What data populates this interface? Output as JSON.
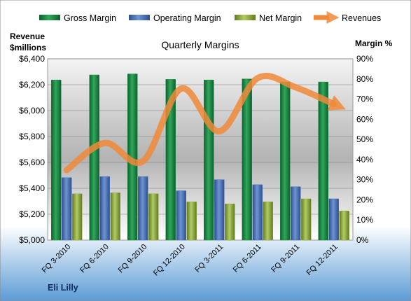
{
  "chart_data": {
    "type": "bar",
    "title": "Quarterly Margins",
    "company": "Eli Lilly",
    "left_axis": {
      "label_line1": "Revenue",
      "label_line2": "$millions",
      "min": 5000,
      "max": 6400,
      "step": 200,
      "ticks": [
        "$5,000",
        "$5,200",
        "$5,400",
        "$5,600",
        "$5,800",
        "$6,000",
        "$6,200",
        "$6,400"
      ]
    },
    "right_axis": {
      "label": "Margin %",
      "min": 0,
      "max": 90,
      "step": 10,
      "ticks": [
        "0%",
        "10%",
        "20%",
        "30%",
        "40%",
        "50%",
        "60%",
        "70%",
        "80%",
        "90%"
      ]
    },
    "categories": [
      "FQ 3-2010",
      "FQ 6-2010",
      "FQ 9-2010",
      "FQ 12-2010",
      "FQ 3-2011",
      "FQ 6-2011",
      "FQ 9-2011",
      "FQ 12-2011"
    ],
    "series": [
      {
        "name": "Gross Margin",
        "axis": "right",
        "kind": "bar",
        "color": "#1e8a47",
        "values": [
          79.5,
          82,
          82.5,
          79.8,
          79.5,
          80,
          78.5,
          78.5
        ]
      },
      {
        "name": "Operating Margin",
        "axis": "right",
        "kind": "bar",
        "color": "#4a70b5",
        "values": [
          31,
          31.5,
          31.5,
          24.5,
          30,
          27.5,
          26.5,
          20.5
        ]
      },
      {
        "name": "Net Margin",
        "axis": "right",
        "kind": "bar",
        "color": "#8faa3c",
        "values": [
          23,
          23.5,
          23,
          19,
          18,
          19,
          20.5,
          14.5
        ]
      },
      {
        "name": "Revenues",
        "axis": "left",
        "kind": "line",
        "color": "#ee8a3a",
        "values": [
          5540,
          5750,
          5610,
          6170,
          5840,
          6250,
          6180,
          6050
        ]
      }
    ],
    "legend_position": "top"
  }
}
